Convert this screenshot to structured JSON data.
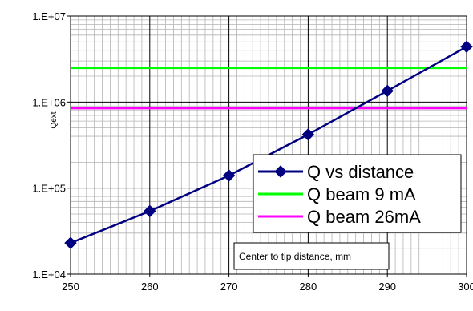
{
  "chart_data": {
    "type": "line",
    "x": [
      250,
      260,
      270,
      280,
      290,
      300
    ],
    "xlim": [
      250,
      300
    ],
    "ylim": [
      10000,
      10000000
    ],
    "y_scale": "log",
    "x_tick_labels": [
      "250",
      "260",
      "270",
      "280",
      "290",
      "300"
    ],
    "y_tick_values": [
      10000,
      100000,
      1000000,
      10000000
    ],
    "y_tick_labels": [
      "1.E+04",
      "1.E+05",
      "1.E+06",
      "1.E+07"
    ],
    "ylabel": "Qext",
    "xlabel": "Center to tip distance, mm",
    "grid": true,
    "legend_position": "lower-right",
    "series": [
      {
        "name": "Q vs distance",
        "color": "#000080",
        "marker": "diamond",
        "values": [
          23000,
          54000,
          140000,
          420000,
          1350000,
          4400000
        ]
      },
      {
        "name": "Q beam 9 mA",
        "color": "#00ff00",
        "marker": "none",
        "values": [
          2500000,
          2500000,
          2500000,
          2500000,
          2500000,
          2500000
        ]
      },
      {
        "name": "Q beam 26mA",
        "color": "#ff00ff",
        "marker": "none",
        "values": [
          850000,
          850000,
          850000,
          850000,
          850000,
          850000
        ]
      }
    ]
  }
}
